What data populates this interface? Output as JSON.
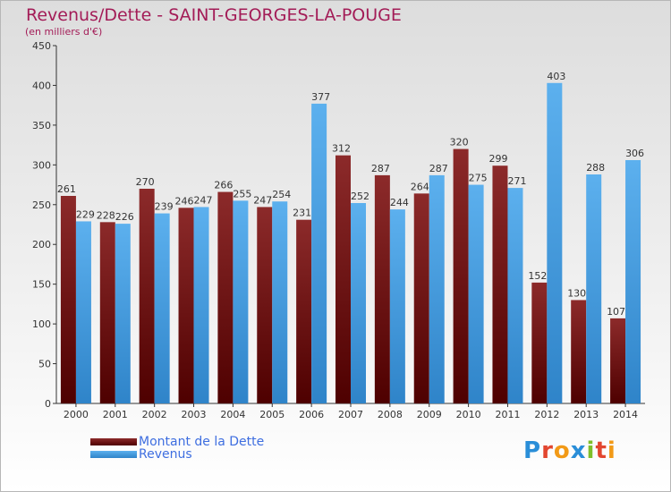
{
  "title": "Revenus/Dette - SAINT-GEORGES-LA-POUGE",
  "subtitle": "(en milliers d'€)",
  "logo": {
    "text": "Proxiti",
    "letters": [
      "P",
      "r",
      "o",
      "x",
      "i",
      "t",
      "i"
    ],
    "colors": [
      "#2a8ed8",
      "#e2462f",
      "#f29a17",
      "#2a8ed8",
      "#7fbf2a",
      "#e2462f",
      "#f29a17"
    ]
  },
  "colors": {
    "dette": "#6e1414",
    "revenus": "#4aa3e3",
    "title": "#a31c57",
    "legend_text": "#3e6ee0"
  },
  "chart_data": {
    "type": "bar",
    "title": "Revenus/Dette - SAINT-GEORGES-LA-POUGE",
    "subtitle": "(en milliers d'€)",
    "categories": [
      "2000",
      "2001",
      "2002",
      "2003",
      "2004",
      "2005",
      "2006",
      "2007",
      "2008",
      "2009",
      "2010",
      "2011",
      "2012",
      "2013",
      "2014"
    ],
    "series": [
      {
        "name": "Montant de la Dette",
        "values": [
          261,
          228,
          270,
          246,
          266,
          247,
          231,
          312,
          287,
          264,
          320,
          299,
          152,
          130,
          107
        ],
        "labels": [
          "261",
          "228",
          "270",
          "246",
          "266",
          "247",
          "231",
          "312",
          "287",
          "264",
          "320",
          "299",
          "152",
          "130",
          "107"
        ]
      },
      {
        "name": "Revenus",
        "values": [
          229,
          226,
          239,
          247,
          255,
          254,
          377,
          252,
          244,
          287,
          275,
          271,
          403,
          288,
          306
        ],
        "labels": [
          "229",
          "226",
          "239",
          "247",
          "255",
          "254",
          "377",
          "252",
          "244",
          "287",
          "275",
          "271",
          "403",
          "288",
          "306"
        ]
      }
    ],
    "ylim": [
      0,
      450
    ],
    "yticks": [
      0,
      50,
      100,
      150,
      200,
      250,
      300,
      350,
      400,
      450
    ],
    "ytick_labels": [
      "0",
      "50",
      "100",
      "150",
      "200",
      "250",
      "300",
      "350",
      "400",
      "450"
    ],
    "grid": false,
    "legend_position": "bottom-left"
  }
}
